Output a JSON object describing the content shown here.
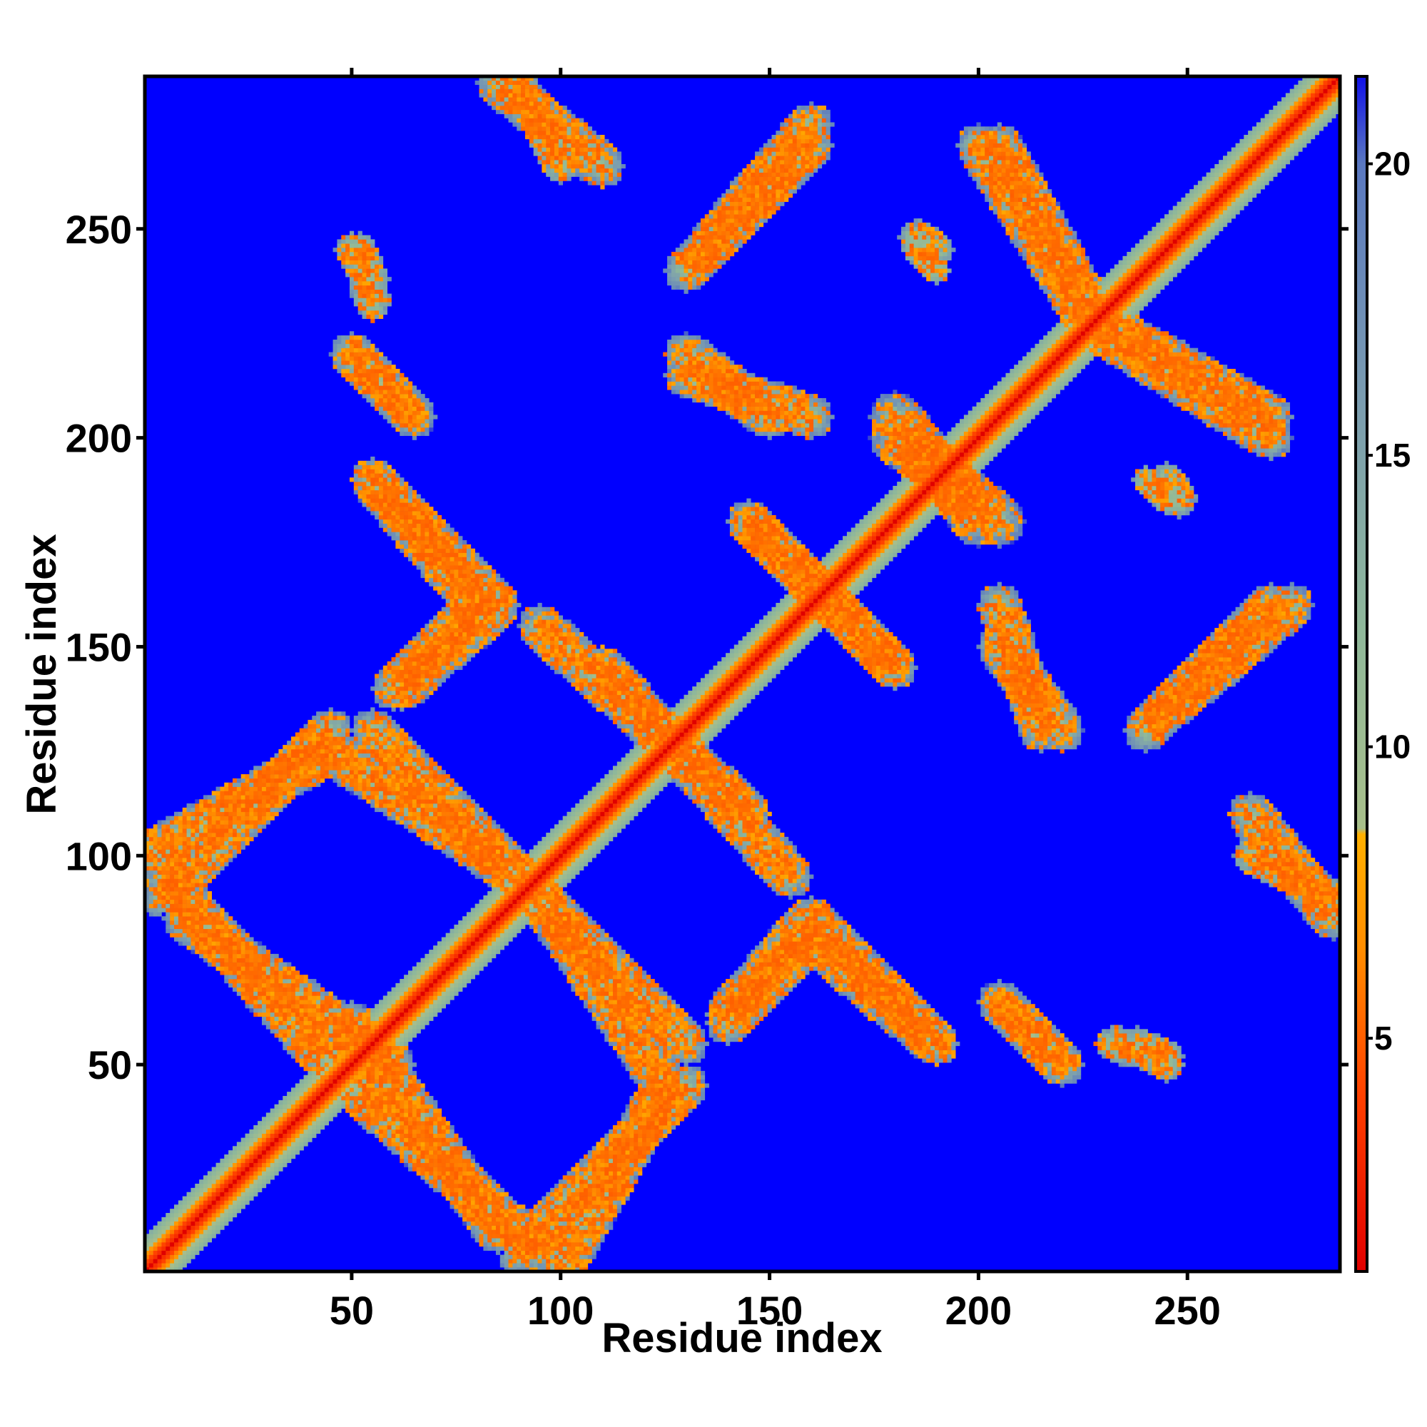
{
  "chart_data": {
    "type": "heatmap",
    "title": "",
    "xlabel": "Residue index",
    "ylabel": "Residue index",
    "xlim": [
      1,
      286
    ],
    "ylim": [
      1,
      286
    ],
    "x_ticks": [
      50,
      100,
      150,
      200,
      250
    ],
    "y_ticks": [
      50,
      100,
      150,
      200,
      250
    ],
    "colorbar": {
      "ticks": [
        5,
        10,
        15,
        20
      ],
      "range": [
        1,
        21.5
      ],
      "stops": [
        {
          "value": 1,
          "color": "#e00000"
        },
        {
          "value": 4,
          "color": "#ff4000"
        },
        {
          "value": 6.5,
          "color": "#ff8c00"
        },
        {
          "value": 8.5,
          "color": "#ffb000"
        },
        {
          "value": 8.6,
          "color": "#a8bf8a"
        },
        {
          "value": 12,
          "color": "#8fb89a"
        },
        {
          "value": 16,
          "color": "#7a9cb0"
        },
        {
          "value": 20,
          "color": "#5a78c0"
        },
        {
          "value": 21.5,
          "color": "#1010e8"
        }
      ]
    },
    "background_value": 21.5,
    "background_color": "#0000ff",
    "contact_bands": [
      {
        "x1": 1,
        "y1": 1,
        "x2": 286,
        "y2": 286,
        "w": 6
      },
      {
        "x1": 1,
        "y1": 100,
        "x2": 45,
        "y2": 125,
        "w": 5
      },
      {
        "x1": 10,
        "y1": 85,
        "x2": 60,
        "y2": 50,
        "w": 5
      },
      {
        "x1": 45,
        "y1": 125,
        "x2": 90,
        "y2": 95,
        "w": 5
      },
      {
        "x1": 50,
        "y1": 45,
        "x2": 95,
        "y2": 5,
        "w": 5
      },
      {
        "x1": 90,
        "y1": 5,
        "x2": 130,
        "y2": 45,
        "w": 5
      },
      {
        "x1": 95,
        "y1": 90,
        "x2": 130,
        "y2": 55,
        "w": 5
      },
      {
        "x1": 55,
        "y1": 190,
        "x2": 85,
        "y2": 160,
        "w": 5
      },
      {
        "x1": 62,
        "y1": 140,
        "x2": 85,
        "y2": 160,
        "w": 5
      },
      {
        "x1": 95,
        "y1": 155,
        "x2": 145,
        "y2": 110,
        "w": 5
      },
      {
        "x1": 140,
        "y1": 60,
        "x2": 160,
        "y2": 80,
        "w": 5
      },
      {
        "x1": 160,
        "y1": 80,
        "x2": 190,
        "y2": 55,
        "w": 5
      },
      {
        "x1": 145,
        "y1": 180,
        "x2": 180,
        "y2": 145,
        "w": 5
      },
      {
        "x1": 130,
        "y1": 215,
        "x2": 160,
        "y2": 205,
        "w": 5
      },
      {
        "x1": 135,
        "y1": 245,
        "x2": 160,
        "y2": 275,
        "w": 5
      },
      {
        "x1": 85,
        "y1": 285,
        "x2": 110,
        "y2": 265,
        "w": 5
      },
      {
        "x1": 50,
        "y1": 220,
        "x2": 65,
        "y2": 205,
        "w": 5
      },
      {
        "x1": 180,
        "y1": 205,
        "x2": 200,
        "y2": 180,
        "w": 6
      },
      {
        "x1": 200,
        "y1": 270,
        "x2": 225,
        "y2": 230,
        "w": 5
      },
      {
        "x1": 225,
        "y1": 230,
        "x2": 270,
        "y2": 205,
        "w": 5
      },
      {
        "x1": 205,
        "y1": 150,
        "x2": 220,
        "y2": 130,
        "w": 5
      },
      {
        "x1": 240,
        "y1": 130,
        "x2": 270,
        "y2": 160,
        "w": 5
      },
      {
        "x1": 265,
        "y1": 100,
        "x2": 285,
        "y2": 90,
        "w": 4
      },
      {
        "x1": 205,
        "y1": 65,
        "x2": 220,
        "y2": 50,
        "w": 4
      },
      {
        "x1": 232,
        "y1": 55,
        "x2": 245,
        "y2": 52,
        "w": 4
      },
      {
        "x1": 50,
        "y1": 245,
        "x2": 55,
        "y2": 238,
        "w": 4
      },
      {
        "x1": 185,
        "y1": 248,
        "x2": 190,
        "y2": 245,
        "w": 4
      },
      {
        "x1": 240,
        "y1": 190,
        "x2": 245,
        "y2": 185,
        "w": 3
      }
    ]
  }
}
